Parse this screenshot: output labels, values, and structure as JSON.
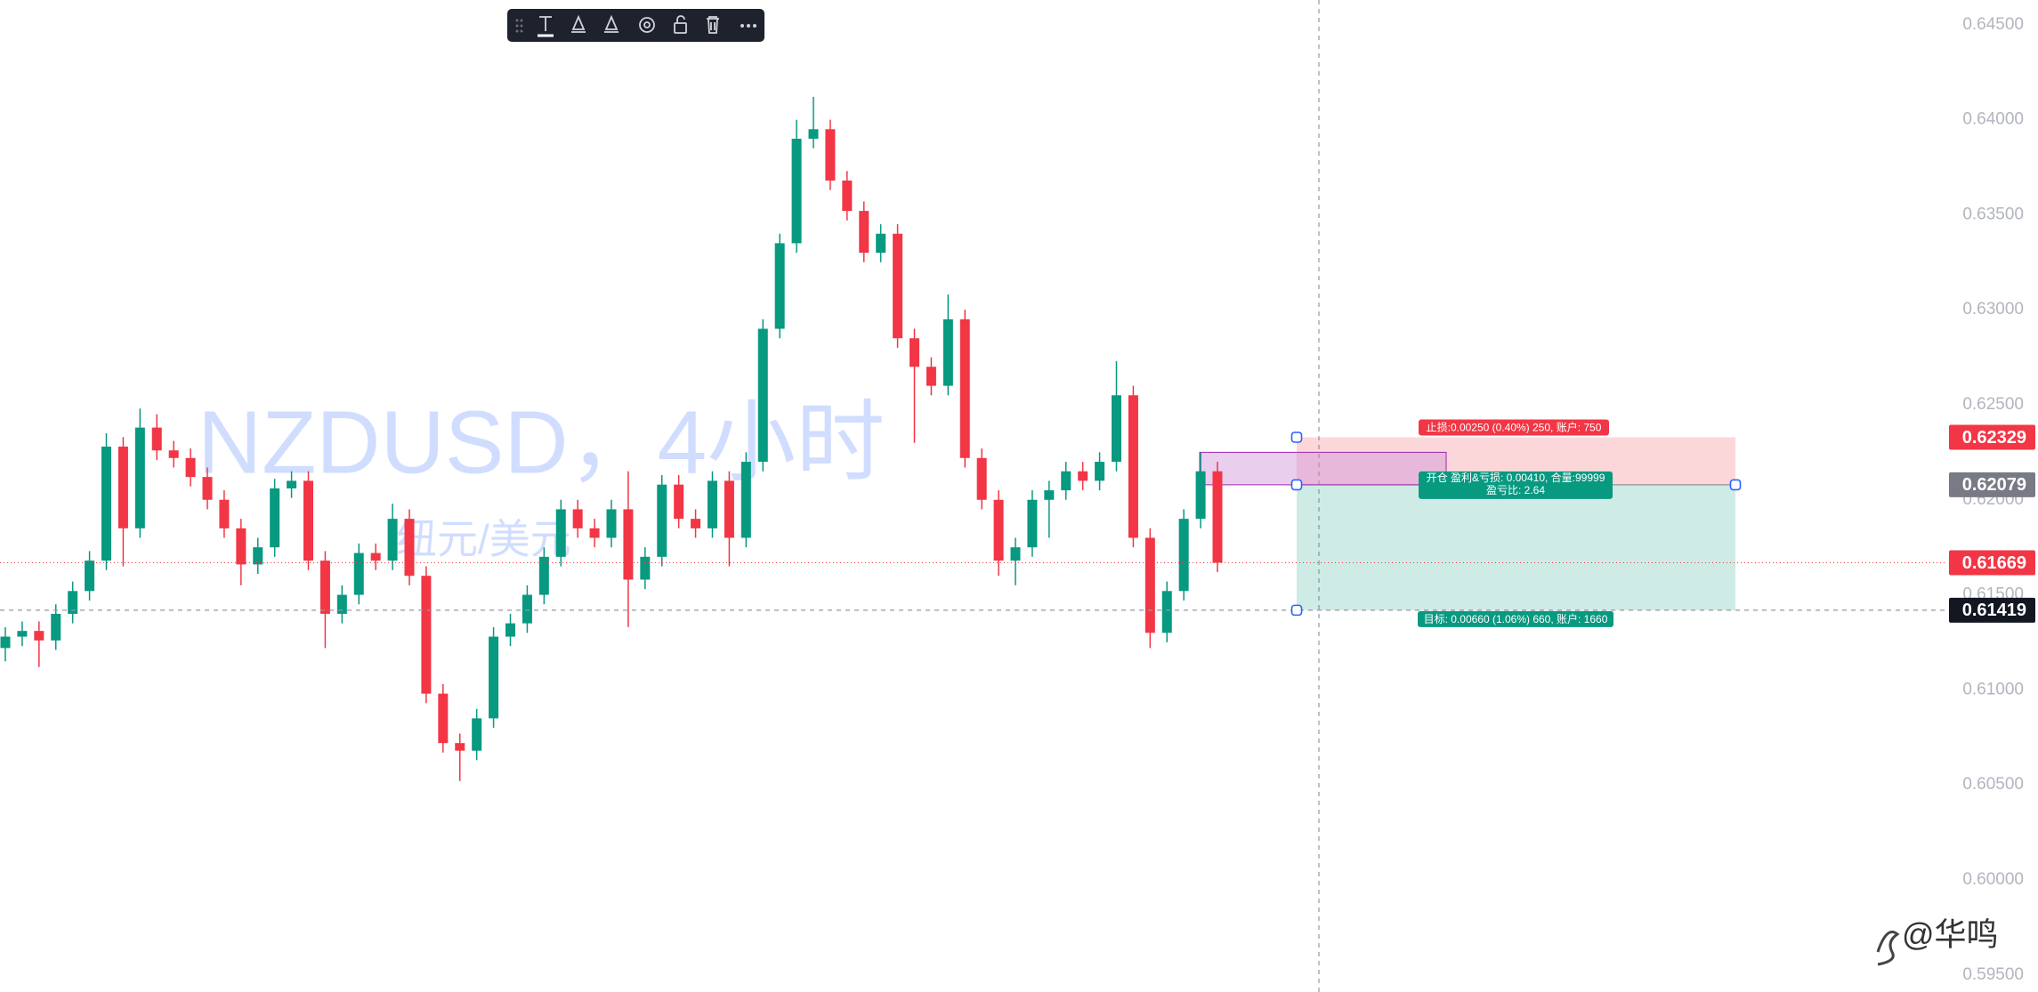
{
  "chart_data": {
    "type": "candlestick",
    "title": "NZDUSD，4小时",
    "subtitle": "纽元/美元",
    "up_color": "#089981",
    "down_color": "#f23645",
    "open": [
      0.6122,
      0.6128,
      0.6131,
      0.6126,
      0.614,
      0.6152,
      0.6168,
      0.6228,
      0.6185,
      0.6238,
      0.6226,
      0.6222,
      0.6212,
      0.62,
      0.6185,
      0.6166,
      0.6175,
      0.6206,
      0.621,
      0.6168,
      0.614,
      0.615,
      0.6172,
      0.6168,
      0.619,
      0.616,
      0.6098,
      0.6072,
      0.6068,
      0.6085,
      0.6128,
      0.6135,
      0.615,
      0.617,
      0.6195,
      0.6185,
      0.618,
      0.6195,
      0.6158,
      0.617,
      0.6208,
      0.619,
      0.6185,
      0.621,
      0.618,
      0.622,
      0.629,
      0.6335,
      0.639,
      0.6395,
      0.6368,
      0.6352,
      0.633,
      0.634,
      0.6285,
      0.627,
      0.626,
      0.6295,
      0.6222,
      0.62,
      0.6168,
      0.6175,
      0.62,
      0.6205,
      0.6215,
      0.621,
      0.622,
      0.6255,
      0.618,
      0.613,
      0.6152,
      0.619,
      0.6215
    ],
    "high": [
      0.6133,
      0.6136,
      0.6136,
      0.6145,
      0.6157,
      0.6173,
      0.6235,
      0.6233,
      0.6248,
      0.6245,
      0.6231,
      0.6227,
      0.6217,
      0.6205,
      0.619,
      0.618,
      0.6211,
      0.6215,
      0.6215,
      0.6173,
      0.6155,
      0.6177,
      0.6177,
      0.6198,
      0.6195,
      0.6165,
      0.6103,
      0.6077,
      0.609,
      0.6133,
      0.614,
      0.6155,
      0.6175,
      0.62,
      0.62,
      0.619,
      0.62,
      0.6215,
      0.6175,
      0.6213,
      0.6213,
      0.6195,
      0.6215,
      0.6215,
      0.6225,
      0.6295,
      0.634,
      0.64,
      0.6412,
      0.64,
      0.6373,
      0.6357,
      0.6345,
      0.6345,
      0.629,
      0.6275,
      0.6308,
      0.63,
      0.6227,
      0.6205,
      0.618,
      0.6205,
      0.621,
      0.622,
      0.622,
      0.6225,
      0.6273,
      0.626,
      0.6185,
      0.6157,
      0.6195,
      0.6225,
      0.622
    ],
    "low": [
      0.6115,
      0.6123,
      0.6112,
      0.6121,
      0.6135,
      0.6147,
      0.6163,
      0.6165,
      0.618,
      0.6221,
      0.6217,
      0.6207,
      0.6195,
      0.618,
      0.6155,
      0.6161,
      0.617,
      0.6201,
      0.6163,
      0.6122,
      0.6135,
      0.6145,
      0.6163,
      0.6163,
      0.6155,
      0.6093,
      0.6067,
      0.6052,
      0.6063,
      0.608,
      0.6123,
      0.613,
      0.6145,
      0.6165,
      0.618,
      0.6175,
      0.6175,
      0.6133,
      0.6153,
      0.6165,
      0.6185,
      0.618,
      0.618,
      0.6165,
      0.6175,
      0.6215,
      0.6285,
      0.633,
      0.6385,
      0.6363,
      0.6347,
      0.6325,
      0.6325,
      0.628,
      0.623,
      0.6255,
      0.6255,
      0.6217,
      0.6195,
      0.616,
      0.6155,
      0.617,
      0.618,
      0.62,
      0.6205,
      0.6205,
      0.6215,
      0.6175,
      0.6122,
      0.6125,
      0.6147,
      0.6185,
      0.6162
    ],
    "close": [
      0.6128,
      0.6131,
      0.6126,
      0.614,
      0.6152,
      0.6168,
      0.6228,
      0.6185,
      0.6238,
      0.6226,
      0.6222,
      0.6212,
      0.62,
      0.6185,
      0.6166,
      0.6175,
      0.6206,
      0.621,
      0.6168,
      0.614,
      0.615,
      0.6172,
      0.6168,
      0.619,
      0.616,
      0.6098,
      0.6072,
      0.6068,
      0.6085,
      0.6128,
      0.6135,
      0.615,
      0.617,
      0.6195,
      0.6185,
      0.618,
      0.6195,
      0.6158,
      0.617,
      0.6208,
      0.619,
      0.6185,
      0.621,
      0.618,
      0.622,
      0.629,
      0.6335,
      0.639,
      0.6395,
      0.6368,
      0.6352,
      0.633,
      0.634,
      0.6285,
      0.627,
      0.626,
      0.6295,
      0.6222,
      0.62,
      0.6168,
      0.6175,
      0.62,
      0.6205,
      0.6215,
      0.621,
      0.622,
      0.6255,
      0.618,
      0.613,
      0.6152,
      0.619,
      0.6215,
      0.61669
    ],
    "ylim": [
      0.5941,
      0.6463
    ],
    "yticks": [
      {
        "value": 0.595,
        "label": "0.59500"
      },
      {
        "value": 0.6,
        "label": "0.60000"
      },
      {
        "value": 0.605,
        "label": "0.60500"
      },
      {
        "value": 0.61,
        "label": "0.61000"
      },
      {
        "value": 0.615,
        "label": "0.61500"
      },
      {
        "value": 0.62,
        "label": "0.62000"
      },
      {
        "value": 0.625,
        "label": "0.62500"
      },
      {
        "value": 0.63,
        "label": "0.63000"
      },
      {
        "value": 0.635,
        "label": "0.63500"
      },
      {
        "value": 0.64,
        "label": "0.64000"
      },
      {
        "value": 0.645,
        "label": "0.64500"
      }
    ],
    "last_price": 0.61669,
    "crosshair_price": 0.61419,
    "highlight_box": {
      "top": 0.6225,
      "bottom": 0.62079
    },
    "position": {
      "stop": 0.62329,
      "entry": 0.62079,
      "target": 0.61419,
      "stop_label": "止损:0.00250 (0.40%) 250, 账户: 750",
      "entry_label": "开仓 盈利&亏损: 0.00410, 合量:99999",
      "ratio_label": "盈亏比: 2.64",
      "target_label": "目标: 0.00660 (1.06%) 660, 账户: 1660"
    }
  },
  "watermark": "@华鸣"
}
